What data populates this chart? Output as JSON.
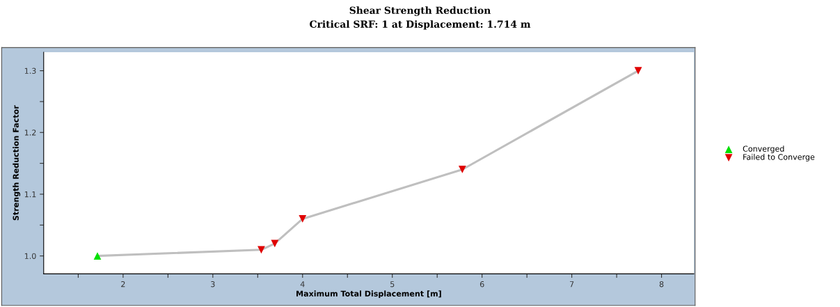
{
  "chart_data": {
    "type": "line",
    "title": "Shear Strength Reduction",
    "subtitle": "Critical SRF: 1 at Displacement: 1.714 m",
    "xlabel": "Maximum Total Displacement [m]",
    "ylabel": "Strength Reduction Factor",
    "series": [
      {
        "color": "#bfbfbf",
        "marker": "none",
        "x": [
          1.714,
          3.54,
          3.69,
          4.0,
          5.78,
          7.74
        ],
        "values": [
          1.0,
          1.01,
          1.02,
          1.06,
          1.14,
          1.3
        ]
      },
      {
        "type": "scatter",
        "name": "Converged",
        "color": "#00e000",
        "marker": "triangle",
        "x": [
          1.714
        ],
        "values": [
          1.0
        ]
      },
      {
        "type": "scatter",
        "name": "Failed to Converge",
        "color": "#e00000",
        "marker": "triangle_down",
        "x": [
          3.54,
          3.69,
          4.0,
          5.78,
          7.74
        ],
        "values": [
          1.01,
          1.02,
          1.06,
          1.14,
          1.3
        ]
      }
    ],
    "xlim": [
      1.115,
      8.36
    ],
    "ylim": [
      0.971,
      1.33
    ],
    "xticks": [
      {
        "value": 1.5,
        "label": null
      },
      2,
      {
        "value": 2.5,
        "label": null
      },
      3,
      {
        "value": 3.5,
        "label": null
      },
      4,
      {
        "value": 4.5,
        "label": null
      },
      5,
      {
        "value": 5.5,
        "label": null
      },
      6,
      {
        "value": 6.5,
        "label": null
      },
      7,
      {
        "value": 7.5,
        "label": null
      },
      8
    ],
    "yticks": [
      {
        "value": 1.0,
        "label": "1.0"
      },
      {
        "value": 1.05,
        "label": null
      },
      1.1,
      {
        "value": 1.15,
        "label": null
      },
      1.2,
      {
        "value": 1.25,
        "label": null
      },
      1.3
    ],
    "grid": false,
    "legend": "right"
  }
}
